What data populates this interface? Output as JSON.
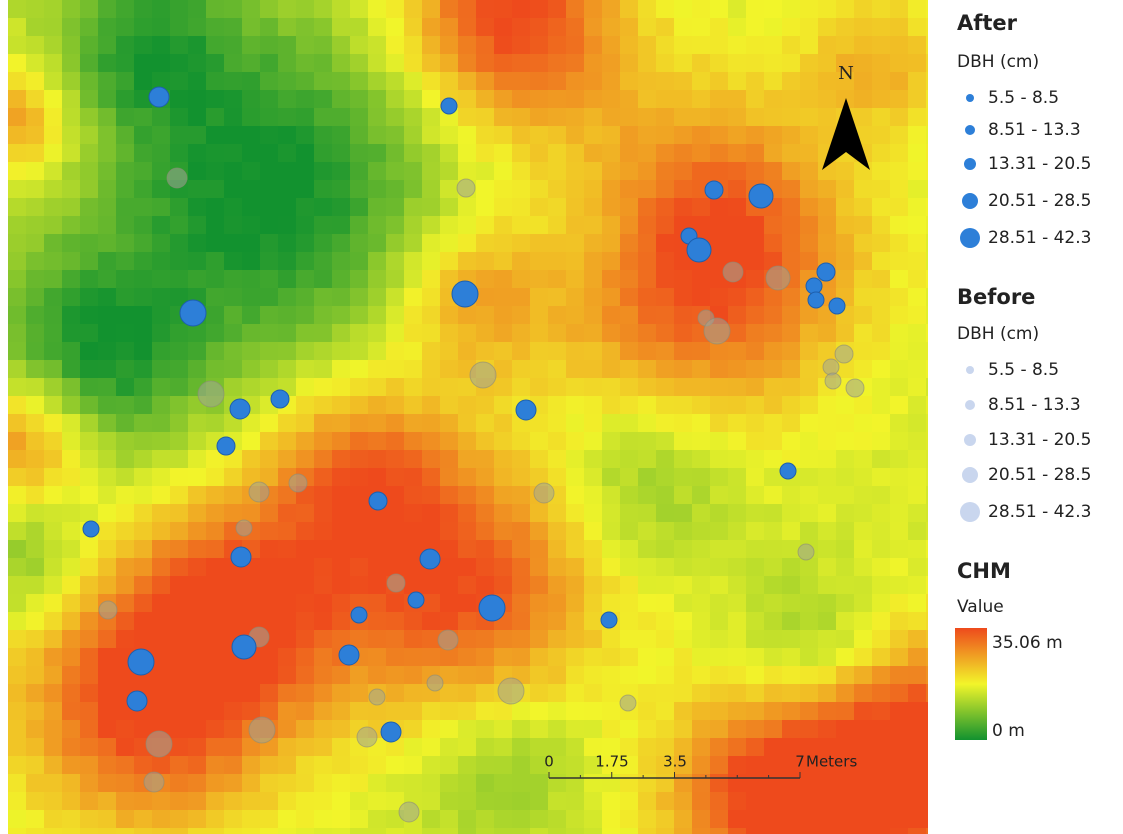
{
  "north": "N",
  "legend": {
    "after": {
      "title": "After",
      "field": "DBH (cm)",
      "classes": [
        "5.5 - 8.5",
        "8.51 - 13.3",
        "13.31 - 20.5",
        "20.51 - 28.5",
        "28.51 - 42.3"
      ]
    },
    "before": {
      "title": "Before",
      "field": "DBH (cm)",
      "classes": [
        "5.5 - 8.5",
        "8.51 - 13.3",
        "13.31 - 20.5",
        "20.51 - 28.5",
        "28.51 - 42.3"
      ]
    },
    "chm": {
      "title": "CHM",
      "field": "Value",
      "high": "35.06 m",
      "low": "0 m"
    }
  },
  "scale_bar": {
    "labels": [
      "0",
      "1.75",
      "3.5",
      "7"
    ],
    "unit": "Meters"
  }
}
